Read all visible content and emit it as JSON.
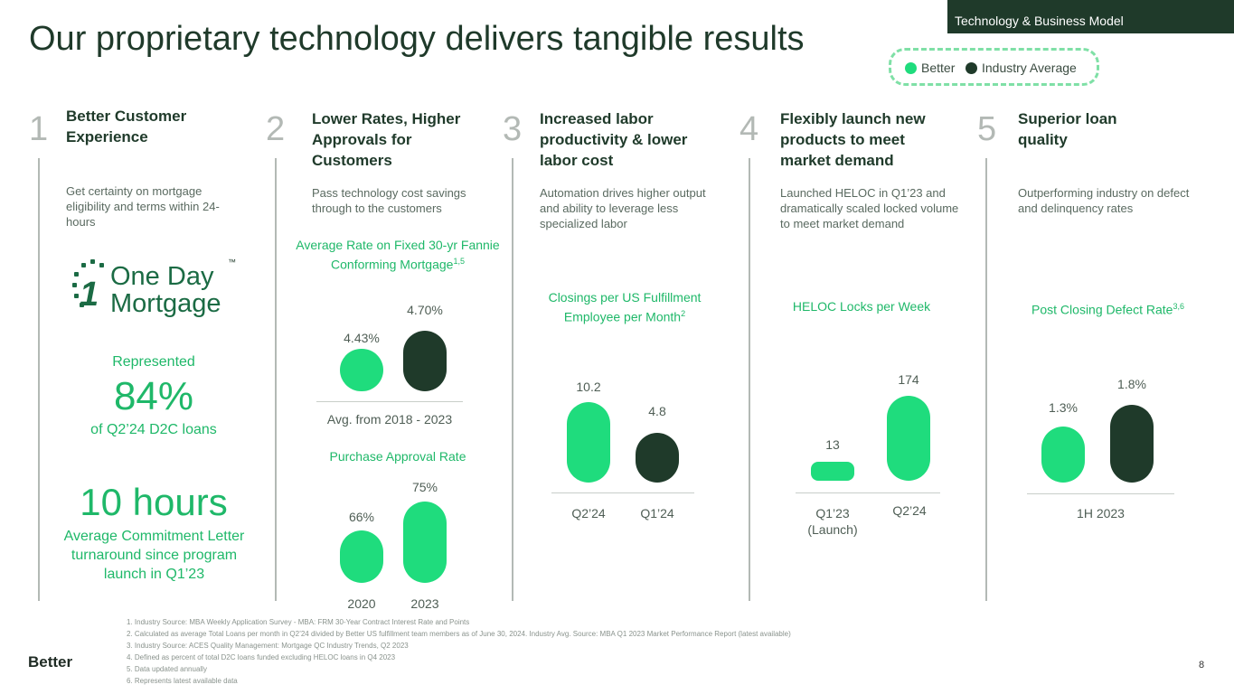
{
  "section_tag": "Technology & Business Model",
  "title": "Our proprietary technology delivers tangible results",
  "legend": {
    "better": "Better",
    "industry": "Industry Average",
    "colors": {
      "better": "#1fdc7d",
      "industry": "#1f3a2a"
    }
  },
  "columns": [
    {
      "number": "1",
      "heading": "Better Customer Experience",
      "description": "Get certainty on mortgage eligibility and terms within 24-hours"
    },
    {
      "number": "2",
      "heading": "Lower Rates, Higher Approvals for Customers",
      "description": "Pass technology cost savings through to the customers"
    },
    {
      "number": "3",
      "heading": "Increased labor productivity & lower labor cost",
      "description": "Automation drives higher output and ability to leverage less specialized labor"
    },
    {
      "number": "4",
      "heading": "Flexibly launch new products to meet market demand",
      "description": "Launched HELOC in Q1’23 and dramatically scaled locked volume to meet market demand"
    },
    {
      "number": "5",
      "heading": "Superior loan quality",
      "description": "Outperforming industry on defect and delinquency rates"
    }
  ],
  "one_day": {
    "logo_line1": "One Day",
    "logo_line2": "Mortgage",
    "logo_digit": "1",
    "tm": "™",
    "represented": "Represented",
    "share": "84%",
    "share_sub": "of Q2’24 D2C loans",
    "hours": "10 hours",
    "hours_sub": "Average Commitment Letter turnaround since program launch in Q1’23"
  },
  "chart_data": [
    {
      "type": "bar",
      "title": "Average Rate on Fixed 30-yr Fannie Conforming Mortgage",
      "title_sup": "1,5",
      "categories": [
        "Avg. from 2018 - 2023"
      ],
      "series": [
        {
          "name": "Better",
          "values": [
            4.43
          ],
          "labels": [
            "4.43%"
          ]
        },
        {
          "name": "Industry Average",
          "values": [
            4.7
          ],
          "labels": [
            "4.70%"
          ]
        }
      ]
    },
    {
      "type": "bar",
      "title": "Purchase Approval Rate",
      "categories": [
        "2020",
        "2023"
      ],
      "values": [
        66,
        75
      ],
      "labels": [
        "66%",
        "75%"
      ]
    },
    {
      "type": "bar",
      "title": "Closings per US Fulfillment Employee per Month",
      "title_sup": "2",
      "categories": [
        "Q2’24",
        "Q1’24"
      ],
      "values": [
        10.2,
        4.8
      ],
      "labels": [
        "10.2",
        "4.8"
      ]
    },
    {
      "type": "bar",
      "title": "HELOC Locks per Week",
      "categories": [
        "Q1’23 (Launch)",
        "Q2’24"
      ],
      "values": [
        13,
        174
      ],
      "labels": [
        "13",
        "174"
      ]
    },
    {
      "type": "bar",
      "title": "Post Closing Defect Rate",
      "title_sup": "3,6",
      "categories": [
        "1H 2023"
      ],
      "series": [
        {
          "name": "Better",
          "values": [
            1.3
          ],
          "labels": [
            "1.3%"
          ]
        },
        {
          "name": "Industry Average",
          "values": [
            1.8
          ],
          "labels": [
            "1.8%"
          ]
        }
      ]
    }
  ],
  "footnotes": [
    "1.   Industry Source: MBA Weekly Application Survey - MBA: FRM 30-Year Contract Interest Rate and Points",
    "2.   Calculated as average Total Loans per month in Q2’24 divided by Better US fulfillment team members as of June 30, 2024. Industry Avg. Source: MBA Q1 2023 Market Performance Report (latest available)",
    "3.   Industry Source: ACES Quality Management: Mortgage QC Industry Trends, Q2 2023",
    "4.   Defined as percent of total D2C loans funded excluding HELOC loans in Q4 2023",
    "5.   Data updated annually",
    "6.   Represents latest available data"
  ],
  "brand": "Better",
  "page_number": "8"
}
